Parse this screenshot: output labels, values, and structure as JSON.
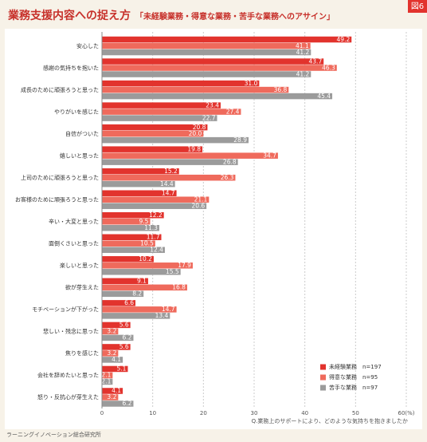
{
  "badge": "図6",
  "chart_data": {
    "type": "hbar",
    "title": "業務支援内容への捉え方",
    "subtitle": "「未経験業務・得意な業務・苦手な業務へのアサイン」",
    "categories": [
      "安心した",
      "感謝の気持ちを抱いた",
      "成長のために頑張ろうと思った",
      "やりがいを感じた",
      "自信がついた",
      "嬉しいと思った",
      "上司のために頑張ろうと思った",
      "お客様のために頑張ろうと思った",
      "辛い・大変と思った",
      "面倒くさいと思った",
      "楽しいと思った",
      "欲が芽生えた",
      "モチベーションが下がった",
      "悲しい・残念に思った",
      "焦りを感じた",
      "会社を辞めたいと思った",
      "怒り・反抗心が芽生えた"
    ],
    "series": [
      {
        "name": "未経験業務　n=197",
        "color": "#e2332d",
        "values": [
          49.2,
          43.7,
          31,
          23.4,
          20.8,
          19.8,
          15.2,
          14.7,
          12.2,
          11.7,
          10.2,
          9.1,
          6.6,
          5.6,
          5.6,
          5.1,
          4.1
        ],
        "value_labels": [
          "49.2",
          "43.7",
          "31.0",
          "23.4",
          "20.8",
          "19.8",
          "15.2",
          "14.7",
          "12.2",
          "11.7",
          "10.2",
          "9.1",
          "6.6",
          "5.6",
          "5.6",
          "5.1",
          "4.1"
        ]
      },
      {
        "name": "得意な業務　n=95",
        "color": "#ef6a5c",
        "values": [
          41.1,
          46.3,
          36.8,
          27.4,
          20,
          34.7,
          26.3,
          21.1,
          9.5,
          10.5,
          17.9,
          16.8,
          14.7,
          3.2,
          3.2,
          2.1,
          3.2
        ],
        "value_labels": [
          "41.1",
          "46.3",
          "36.8",
          "27.4",
          "20.0",
          "34.7",
          "26.3",
          "21.1",
          "9.5",
          "10.5",
          "17.9",
          "16.8",
          "14.7",
          "3.2",
          "3.2",
          "2.1",
          "3.2"
        ]
      },
      {
        "name": "苦手な業務　n=97",
        "color": "#9b9b9b",
        "values": [
          41.2,
          41.2,
          45.4,
          22.7,
          28.9,
          26.8,
          14.4,
          20.6,
          11.3,
          12.4,
          15.5,
          8.2,
          13.4,
          6.2,
          4.1,
          2.1,
          6.2
        ],
        "value_labels": [
          "41.2",
          "41.2",
          "45.4",
          "22.7",
          "28.9",
          "26.8",
          "14.4",
          "20.6",
          "11.3",
          "12.4",
          "15.5",
          "8.2",
          "13.4",
          "6.2",
          "4.1",
          "2.1",
          "6.2"
        ]
      }
    ],
    "xlim": [
      0,
      60
    ],
    "xticks": [
      0,
      10,
      20,
      30,
      40,
      50,
      {
        "value": 60,
        "label": "60(%)"
      }
    ],
    "grid": true,
    "note": "Q.業務上のサポートにより、どのような気持ちを抱きましたか",
    "source": "ラーニングイノベーション総合研究所"
  }
}
